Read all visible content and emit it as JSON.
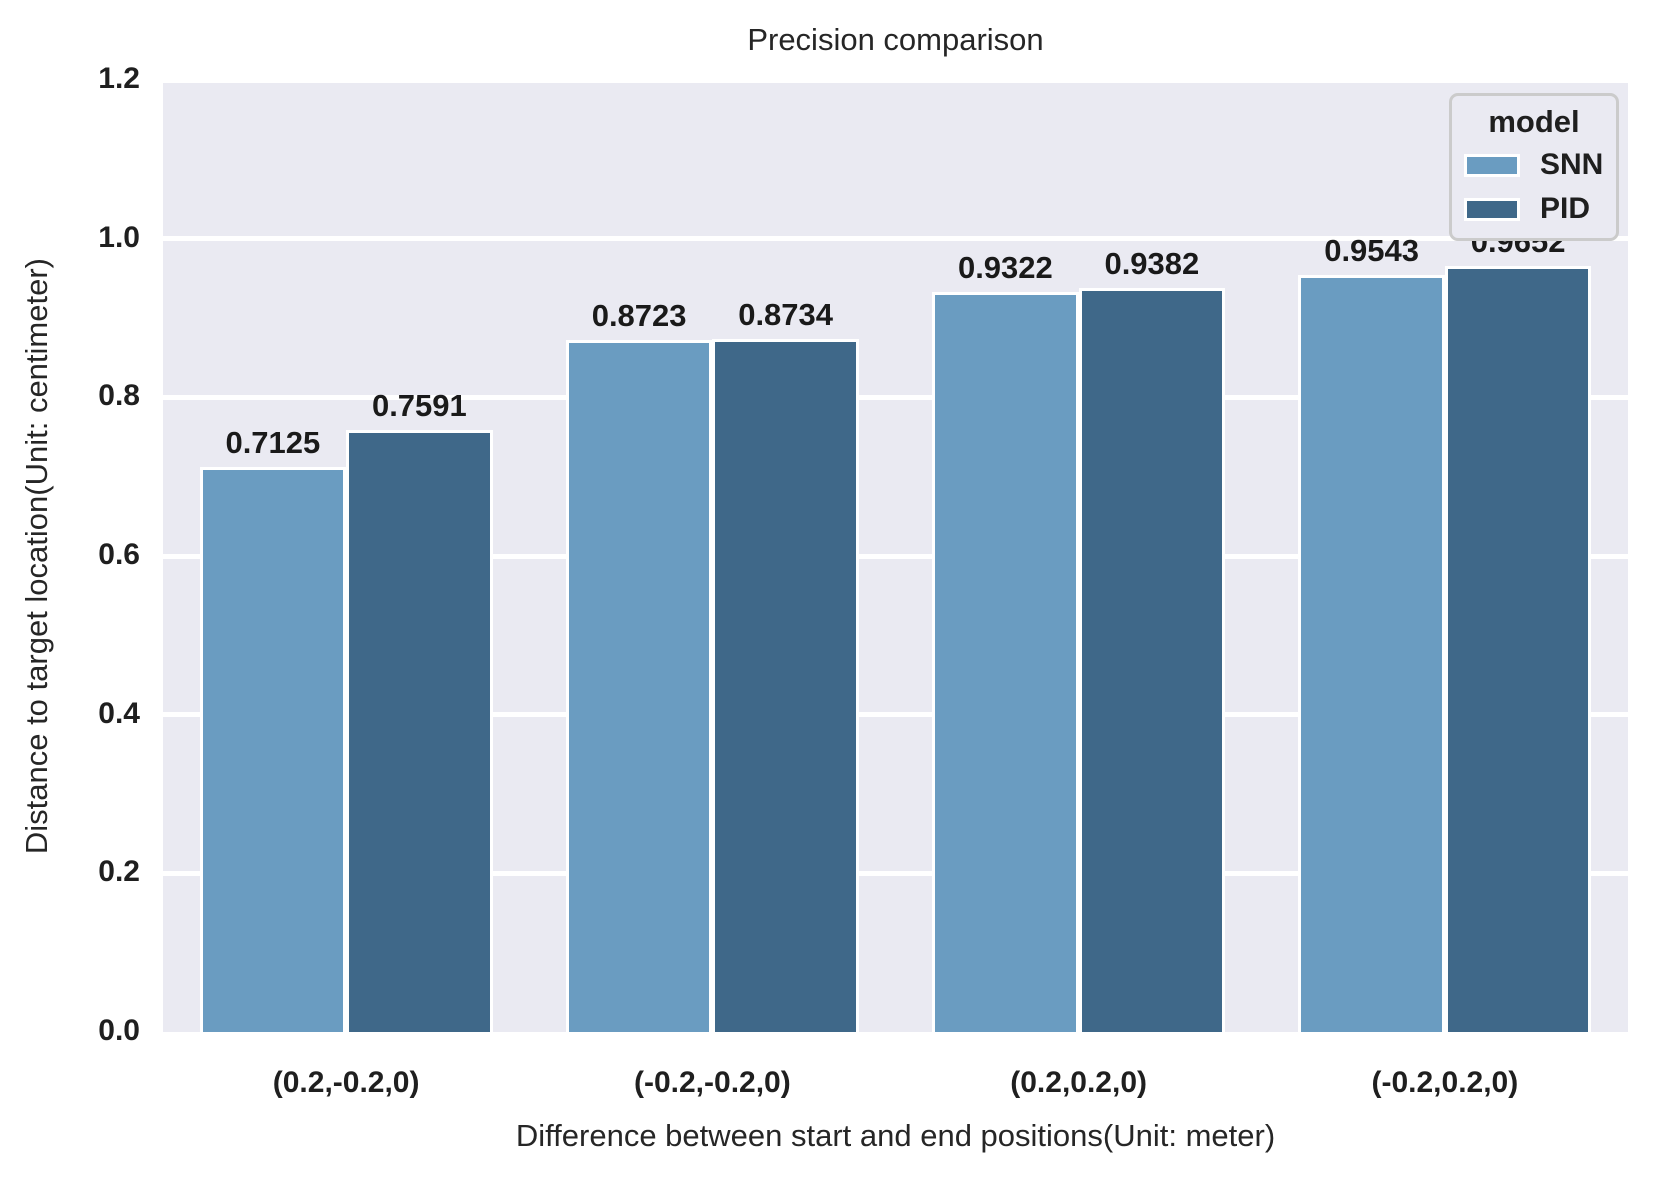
{
  "chart_data": {
    "type": "bar",
    "title": "Precision comparison",
    "xlabel": "Difference between start and end positions(Unit: meter)",
    "ylabel": "Distance to target location(Unit: centimeter)",
    "categories": [
      "(0.2,-0.2,0)",
      "(-0.2,-0.2,0)",
      "(0.2,0.2,0)",
      "(-0.2,0.2,0)"
    ],
    "series": [
      {
        "name": "SNN",
        "color": "#6a9cc1",
        "values": [
          0.7125,
          0.8723,
          0.9322,
          0.9543
        ]
      },
      {
        "name": "PID",
        "color": "#3f6889",
        "values": [
          0.7591,
          0.8734,
          0.9382,
          0.9652
        ]
      }
    ],
    "ylim": [
      0,
      1.2
    ],
    "yticks": [
      0.0,
      0.2,
      0.4,
      0.6,
      0.8,
      1.0,
      1.2
    ],
    "legend_title": "model",
    "legend_position": "upper right",
    "grid": "horizontal",
    "value_labels": true,
    "colors": {
      "plot_background": "#eaeaf2",
      "gridline": "#ffffff",
      "text": "#262626",
      "bar_edge": "#ffffff",
      "legend_border": "#cbcbcb"
    }
  }
}
